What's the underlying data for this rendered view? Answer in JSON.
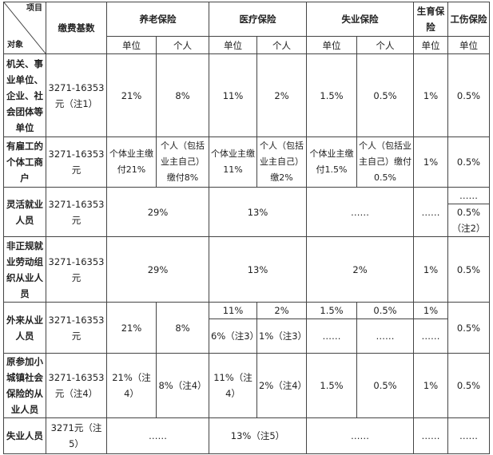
{
  "header": {
    "corner_top": "项目",
    "corner_bottom": "对象",
    "base": "缴费基数",
    "pension": "养老保险",
    "medical": "医疗保险",
    "unemployment": "失业保险",
    "maternity": "生育保险",
    "injury": "工伤保险",
    "unit": "单位",
    "person": "个人"
  },
  "rows": [
    {
      "name": "机关、事业单位、企业、社会团体等单位",
      "base": "3271-16353元（注1）",
      "pension_unit": "21%",
      "pension_person": "8%",
      "medical_unit": "11%",
      "medical_person": "2%",
      "unemp_unit": "1.5%",
      "unemp_person": "0.5%",
      "maternity": "1%",
      "injury": "0.5%"
    },
    {
      "name": "有雇工的个体工商户",
      "base": "3271-16353元",
      "pension_unit": "个体业主缴付21%",
      "pension_person": "个人（包括业主自己）缴付8%",
      "medical_unit": "个体业主缴11%",
      "medical_person": "个人（包括业主自己）缴2%",
      "unemp_unit": "个体业主缴付1.5%",
      "unemp_person": "个人（包括业主自己）缴付0.5%",
      "maternity": "1%",
      "injury": "0.5%"
    },
    {
      "name": "灵活就业人员",
      "base": "3271-16353元",
      "pension": "29%",
      "medical": "13%",
      "unemp": "……",
      "maternity": "……",
      "injury_top": "……",
      "injury_bottom": "0.5%（注2）"
    },
    {
      "name": "非正规就业劳动组织从业人员",
      "base": "3271-16353元",
      "pension": "29%",
      "medical": "13%",
      "unemp": "2%",
      "maternity": "1%",
      "injury": "0.5%"
    },
    {
      "name": "外来从业人员",
      "base": "3271-16353元",
      "pension_unit": "21%",
      "pension_person": "8%",
      "medical_unit_top": "11%",
      "medical_person_top": "2%",
      "medical_unit_bottom": "6%（注3）",
      "medical_person_bottom": "1%（注3）",
      "unemp_unit_top": "1.5%",
      "unemp_person_top": "0.5%",
      "unemp_unit_bottom": "……",
      "unemp_person_bottom": "……",
      "maternity_top": "1%",
      "maternity_bottom": "……",
      "injury": "0.5%"
    },
    {
      "name": "原参加小城镇社会保险的从业人员",
      "base": "3271-16353元（注4）",
      "pension_unit": "21%（注4）",
      "pension_person": "8%（注4）",
      "medical_unit": "11%（注4）",
      "medical_person": "2%（注4）",
      "unemp_unit": "1.5%",
      "unemp_person": "0.5%",
      "maternity": "1%",
      "injury": "0.5%"
    },
    {
      "name": "失业人员",
      "base": "3271元（注5）",
      "pension": "……",
      "medical": "13%（注5）",
      "unemp": "……",
      "maternity": "……",
      "injury": "……"
    }
  ]
}
